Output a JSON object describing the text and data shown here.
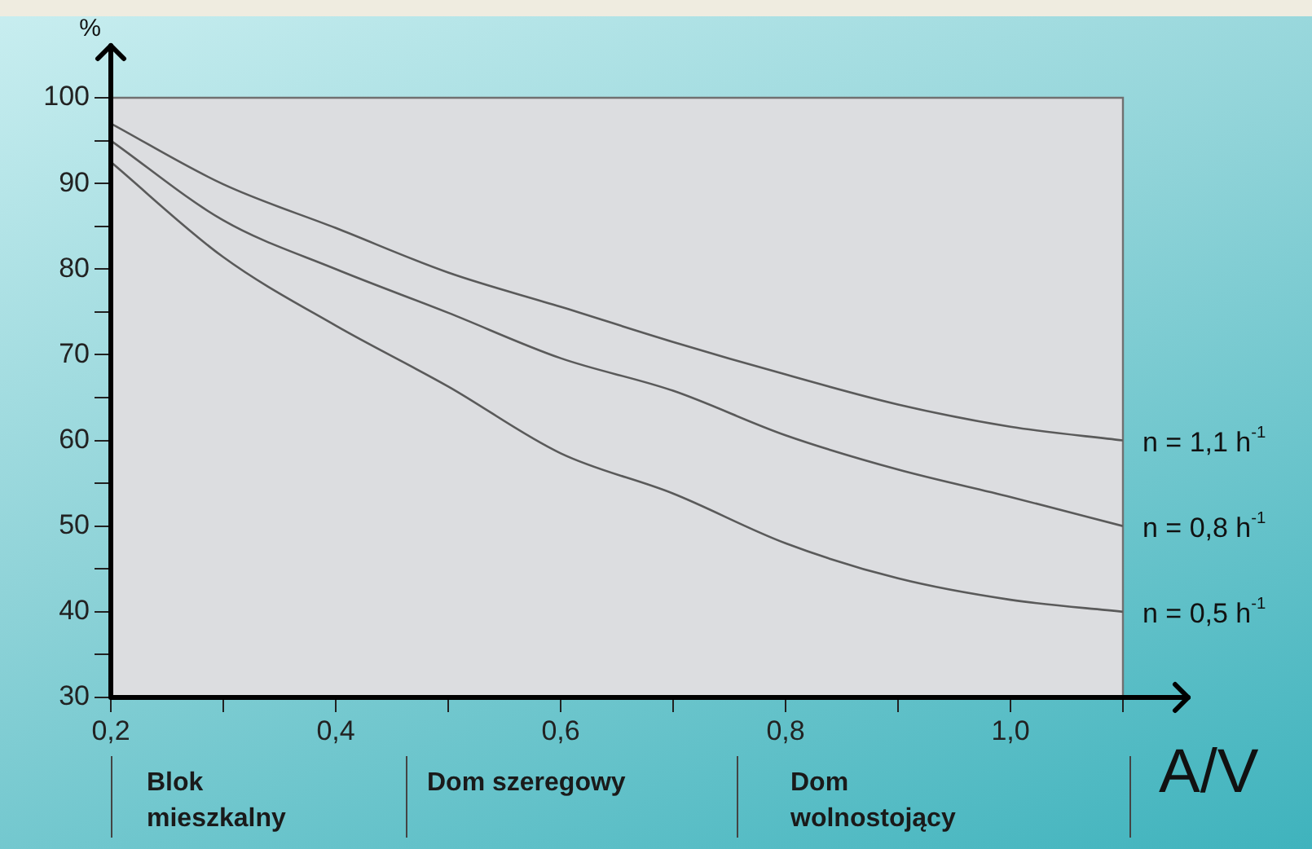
{
  "chart_data": {
    "type": "line",
    "xlabel": "A/V",
    "ylabel": "%",
    "x": [
      0.2,
      0.3,
      0.4,
      0.5,
      0.6,
      0.7,
      0.8,
      0.9,
      1.0,
      1.1
    ],
    "series": [
      {
        "name": "n = 1,1 h$^{-1}$",
        "color": "#5a5a5a",
        "values": [
          97,
          89.9,
          84.8,
          79.6,
          75.6,
          71.5,
          67.7,
          64.2,
          61.6,
          60
        ]
      },
      {
        "name": "n = 0,8 h$^{-1}$",
        "color": "#5a5a5a",
        "values": [
          95,
          85.7,
          80,
          74.9,
          69.6,
          65.8,
          60.6,
          56.6,
          53.4,
          50
        ]
      },
      {
        "name": "n = 0,5 h$^{-1}$",
        "color": "#5a5a5a",
        "values": [
          92.5,
          81.4,
          73.4,
          66.3,
          58.5,
          53.8,
          48,
          43.9,
          41.4,
          40
        ]
      }
    ],
    "xlim": [
      0.2,
      1.1
    ],
    "xticks": [
      {
        "value": 0.2,
        "label": "0,2"
      },
      {
        "value": 0.3,
        "label": null
      },
      {
        "value": 0.4,
        "label": "0,4"
      },
      {
        "value": 0.5,
        "label": null
      },
      {
        "value": 0.6,
        "label": "0,6"
      },
      {
        "value": 0.7,
        "label": null
      },
      {
        "value": 0.8,
        "label": "0,8"
      },
      {
        "value": 0.9,
        "label": null
      },
      {
        "value": 1.0,
        "label": "1,0"
      },
      {
        "value": 1.1,
        "label": null
      }
    ],
    "ylim": [
      30,
      100
    ],
    "yticks": [
      30,
      {
        "value": 35,
        "label": null
      },
      40,
      {
        "value": 45,
        "label": null
      },
      50,
      {
        "value": 55,
        "label": null
      },
      60,
      {
        "value": 65,
        "label": null
      },
      70,
      {
        "value": 75,
        "label": null
      },
      80,
      {
        "value": 85,
        "label": null
      },
      90,
      {
        "value": 95,
        "label": null
      },
      100
    ],
    "annotations": [
      "Blok mieszkalny",
      "Dom szeregowy",
      "Dom wolnostojący"
    ],
    "grid": false,
    "legend": false,
    "marker": "none",
    "line_style": "solid"
  }
}
